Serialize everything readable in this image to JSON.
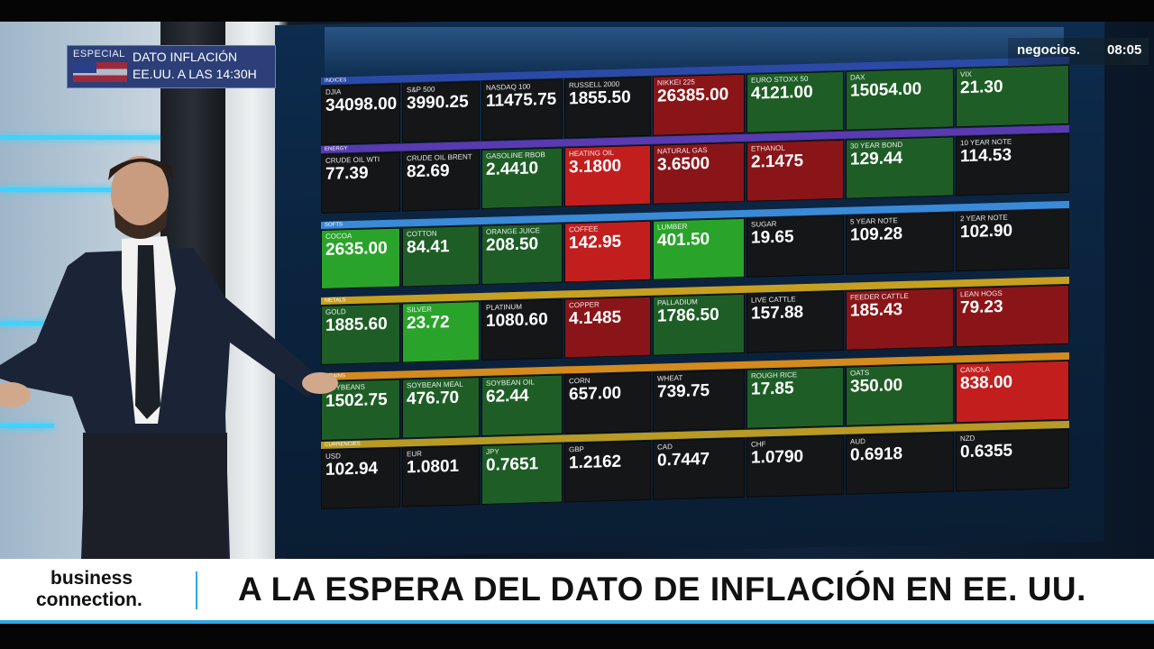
{
  "overlay": {
    "special_tag": "ESPECIAL",
    "special_line1": "DATO INFLACIÓN",
    "special_line2": "EE.UU. A LAS 14:30H",
    "channel": "negocios.",
    "time": "08:05",
    "program_line1": "business",
    "program_line2": "connection.",
    "headline": "A LA ESPERA DEL DATO DE INFLACIÓN EN EE. UU."
  },
  "board": {
    "sections": [
      "INDICES",
      "ENERGY",
      "SOFTS",
      "METALS",
      "GRAINS",
      "CURRENCIES"
    ],
    "rows": [
      [
        {
          "n": "DJIA",
          "p": "34098.00",
          "c": "k"
        },
        {
          "n": "S&P 500",
          "p": "3990.25",
          "c": "k"
        },
        {
          "n": "NASDAQ 100",
          "p": "11475.75",
          "c": "k"
        },
        {
          "n": "RUSSELL 2000",
          "p": "1855.50",
          "c": "k"
        },
        {
          "n": "NIKKEI 225",
          "p": "26385.00",
          "c": "r"
        },
        {
          "n": "EURO STOXX 50",
          "p": "4121.00",
          "c": "g"
        },
        {
          "n": "DAX",
          "p": "15054.00",
          "c": "g"
        },
        {
          "n": "VIX",
          "p": "21.30",
          "c": "g"
        }
      ],
      [
        {
          "n": "CRUDE OIL WTI",
          "p": "77.39",
          "c": "k"
        },
        {
          "n": "CRUDE OIL BRENT",
          "p": "82.69",
          "c": "k"
        },
        {
          "n": "GASOLINE RBOB",
          "p": "2.4410",
          "c": "g"
        },
        {
          "n": "HEATING OIL",
          "p": "3.1800",
          "c": "br"
        },
        {
          "n": "NATURAL GAS",
          "p": "3.6500",
          "c": "r"
        },
        {
          "n": "ETHANOL",
          "p": "2.1475",
          "c": "r"
        },
        {
          "n": "30 YEAR BOND",
          "p": "129.44",
          "c": "g"
        },
        {
          "n": "10 YEAR NOTE",
          "p": "114.53",
          "c": "k"
        }
      ],
      [
        {
          "n": "COCOA",
          "p": "2635.00",
          "c": "bg"
        },
        {
          "n": "COTTON",
          "p": "84.41",
          "c": "g"
        },
        {
          "n": "ORANGE JUICE",
          "p": "208.50",
          "c": "g"
        },
        {
          "n": "COFFEE",
          "p": "142.95",
          "c": "br"
        },
        {
          "n": "LUMBER",
          "p": "401.50",
          "c": "bg"
        },
        {
          "n": "SUGAR",
          "p": "19.65",
          "c": "k"
        },
        {
          "n": "5 YEAR NOTE",
          "p": "109.28",
          "c": "k"
        },
        {
          "n": "2 YEAR NOTE",
          "p": "102.90",
          "c": "k"
        }
      ],
      [
        {
          "n": "GOLD",
          "p": "1885.60",
          "c": "g"
        },
        {
          "n": "SILVER",
          "p": "23.72",
          "c": "bg"
        },
        {
          "n": "PLATINUM",
          "p": "1080.60",
          "c": "k"
        },
        {
          "n": "COPPER",
          "p": "4.1485",
          "c": "r"
        },
        {
          "n": "PALLADIUM",
          "p": "1786.50",
          "c": "g"
        },
        {
          "n": "LIVE CATTLE",
          "p": "157.88",
          "c": "k"
        },
        {
          "n": "FEEDER CATTLE",
          "p": "185.43",
          "c": "r"
        },
        {
          "n": "LEAN HOGS",
          "p": "79.23",
          "c": "r"
        }
      ],
      [
        {
          "n": "SOYBEANS",
          "p": "1502.75",
          "c": "g"
        },
        {
          "n": "SOYBEAN MEAL",
          "p": "476.70",
          "c": "g"
        },
        {
          "n": "SOYBEAN OIL",
          "p": "62.44",
          "c": "g"
        },
        {
          "n": "CORN",
          "p": "657.00",
          "c": "k"
        },
        {
          "n": "WHEAT",
          "p": "739.75",
          "c": "k"
        },
        {
          "n": "ROUGH RICE",
          "p": "17.85",
          "c": "g"
        },
        {
          "n": "OATS",
          "p": "350.00",
          "c": "g"
        },
        {
          "n": "CANOLA",
          "p": "838.00",
          "c": "br"
        }
      ],
      [
        {
          "n": "USD",
          "p": "102.94",
          "c": "k"
        },
        {
          "n": "EUR",
          "p": "1.0801",
          "c": "k"
        },
        {
          "n": "JPY",
          "p": "0.7651",
          "c": "g"
        },
        {
          "n": "GBP",
          "p": "1.2162",
          "c": "k"
        },
        {
          "n": "CAD",
          "p": "0.7447",
          "c": "k"
        },
        {
          "n": "CHF",
          "p": "1.0790",
          "c": "k"
        },
        {
          "n": "AUD",
          "p": "0.6918",
          "c": "k"
        },
        {
          "n": "NZD",
          "p": "0.6355",
          "c": "k"
        }
      ]
    ],
    "colors": {
      "black": "#141618",
      "green": "#1e5e26",
      "bright_green": "#2aa32b",
      "red": "#8a1518",
      "bright_red": "#c21e1e",
      "section_indices": "#2b4aa8",
      "section_energy": "#5a3ab0",
      "section_softs": "#3a8ad8",
      "section_metals": "#c8a020",
      "section_grains": "#d48a1c",
      "section_currencies": "#b89a24",
      "accent": "#2ea8e6"
    }
  }
}
